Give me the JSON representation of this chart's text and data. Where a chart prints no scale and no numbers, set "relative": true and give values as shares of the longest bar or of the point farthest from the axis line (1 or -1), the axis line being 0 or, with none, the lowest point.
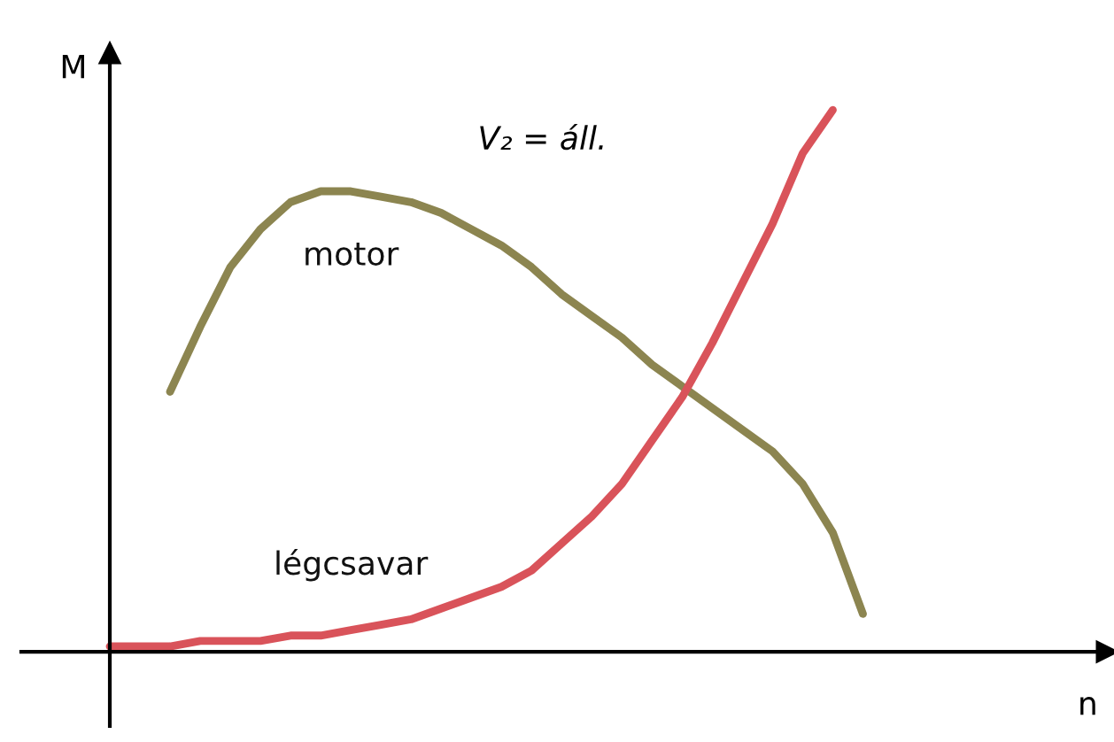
{
  "chart_data": {
    "type": "line",
    "relative": true,
    "xlabel": "n",
    "ylabel": "M",
    "annotations": [
      "V₂ = áll."
    ],
    "categories": [
      null,
      null,
      null,
      null,
      null,
      null,
      null,
      null,
      null,
      null,
      null,
      null,
      null,
      null,
      null,
      null,
      null,
      null,
      null,
      null,
      null,
      null,
      null,
      null,
      null,
      null,
      null,
      null,
      null,
      null,
      null,
      null,
      null,
      null
    ],
    "series": [
      {
        "name": "motor",
        "color": "#8c8550",
        "values": [
          null,
          null,
          0.48,
          0.6,
          0.71,
          0.78,
          0.83,
          0.85,
          0.85,
          0.84,
          0.83,
          0.81,
          0.78,
          0.75,
          0.71,
          0.66,
          0.62,
          0.58,
          0.53,
          0.49,
          0.45,
          0.41,
          0.37,
          0.31,
          0.22,
          0.07,
          null,
          null,
          null,
          null,
          null,
          null,
          null,
          null
        ]
      },
      {
        "name": "légcsavar",
        "color": "#d9535a",
        "values": [
          0.01,
          0.01,
          0.01,
          0.02,
          0.02,
          0.02,
          0.03,
          0.03,
          0.04,
          0.05,
          0.06,
          0.08,
          0.1,
          0.12,
          0.15,
          0.2,
          0.25,
          0.31,
          0.39,
          0.47,
          0.57,
          0.68,
          0.79,
          0.92,
          1.0,
          null,
          null,
          null,
          null,
          null,
          null,
          null,
          null,
          null
        ]
      }
    ],
    "legend": false,
    "marker": "none",
    "line_style": "solid"
  }
}
